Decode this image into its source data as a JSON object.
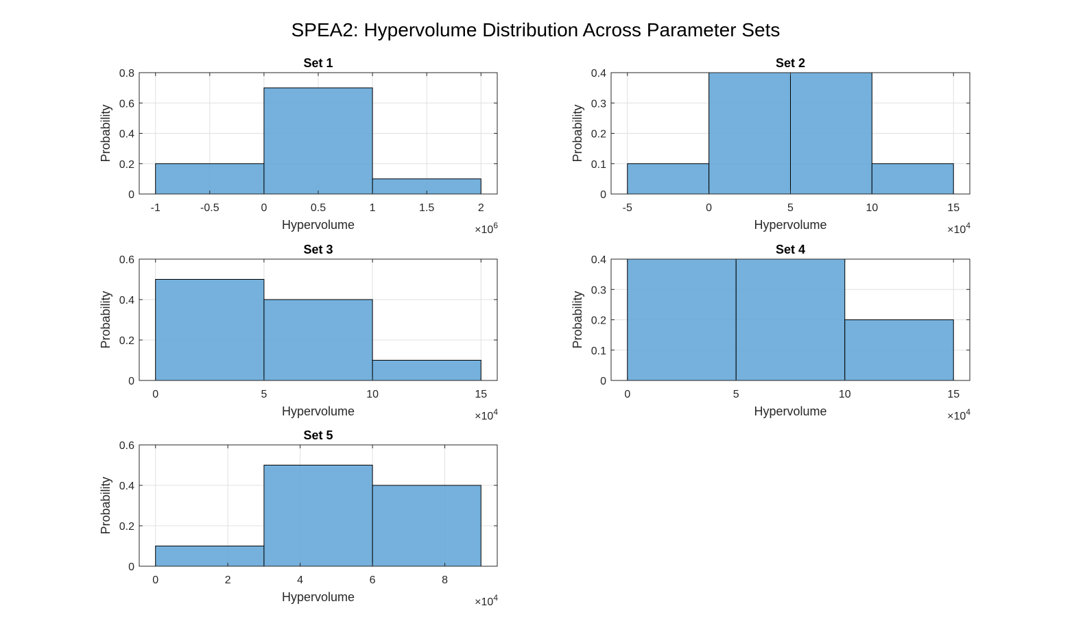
{
  "figure": {
    "title": "SPEA2: Hypervolume Distribution Across Parameter Sets",
    "bar_color": "#66a8d8",
    "bar_edge_color": "#000000",
    "grid_color": "#e0e0e0"
  },
  "chart_data": [
    {
      "type": "bar",
      "title": "Set 1",
      "xlabel": "Hypervolume",
      "ylabel": "Probability",
      "x_multiplier": "×10",
      "x_exponent": "6",
      "bin_edges": [
        -1,
        0,
        1,
        2
      ],
      "values": [
        0.2,
        0.7,
        0.1
      ],
      "xlim": [
        -1.15,
        2.15
      ],
      "ylim": [
        0,
        0.8
      ],
      "xticks": [
        -1,
        -0.5,
        0,
        0.5,
        1,
        1.5,
        2
      ],
      "xtick_labels": [
        "-1",
        "-0.5",
        "0",
        "0.5",
        "1",
        "1.5",
        "2"
      ],
      "yticks": [
        0,
        0.2,
        0.4,
        0.6,
        0.8
      ],
      "ytick_labels": [
        "0",
        "0.2",
        "0.4",
        "0.6",
        "0.8"
      ],
      "grid": true
    },
    {
      "type": "bar",
      "title": "Set 2",
      "xlabel": "Hypervolume",
      "ylabel": "Probability",
      "x_multiplier": "×10",
      "x_exponent": "4",
      "bin_edges": [
        -5,
        0,
        5,
        10,
        15
      ],
      "values": [
        0.1,
        0.4,
        0.4,
        0.1
      ],
      "xlim": [
        -6,
        16
      ],
      "ylim": [
        0,
        0.4
      ],
      "xticks": [
        -5,
        0,
        5,
        10,
        15
      ],
      "xtick_labels": [
        "-5",
        "0",
        "5",
        "10",
        "15"
      ],
      "yticks": [
        0,
        0.1,
        0.2,
        0.3,
        0.4
      ],
      "ytick_labels": [
        "0",
        "0.1",
        "0.2",
        "0.3",
        "0.4"
      ],
      "grid": true
    },
    {
      "type": "bar",
      "title": "Set 3",
      "xlabel": "Hypervolume",
      "ylabel": "Probability",
      "x_multiplier": "×10",
      "x_exponent": "4",
      "bin_edges": [
        0,
        5,
        10,
        15
      ],
      "values": [
        0.5,
        0.4,
        0.1
      ],
      "xlim": [
        -0.75,
        15.75
      ],
      "ylim": [
        0,
        0.6
      ],
      "xticks": [
        0,
        5,
        10,
        15
      ],
      "xtick_labels": [
        "0",
        "5",
        "10",
        "15"
      ],
      "yticks": [
        0,
        0.2,
        0.4,
        0.6
      ],
      "ytick_labels": [
        "0",
        "0.2",
        "0.4",
        "0.6"
      ],
      "grid": true
    },
    {
      "type": "bar",
      "title": "Set 4",
      "xlabel": "Hypervolume",
      "ylabel": "Probability",
      "x_multiplier": "×10",
      "x_exponent": "4",
      "bin_edges": [
        0,
        5,
        10,
        15
      ],
      "values": [
        0.4,
        0.4,
        0.2
      ],
      "xlim": [
        -0.75,
        15.75
      ],
      "ylim": [
        0,
        0.4
      ],
      "xticks": [
        0,
        5,
        10,
        15
      ],
      "xtick_labels": [
        "0",
        "5",
        "10",
        "15"
      ],
      "yticks": [
        0,
        0.1,
        0.2,
        0.3,
        0.4
      ],
      "ytick_labels": [
        "0",
        "0.1",
        "0.2",
        "0.3",
        "0.4"
      ],
      "grid": true
    },
    {
      "type": "bar",
      "title": "Set 5",
      "xlabel": "Hypervolume",
      "ylabel": "Probability",
      "x_multiplier": "×10",
      "x_exponent": "4",
      "bin_edges": [
        0,
        3,
        6,
        9
      ],
      "values": [
        0.1,
        0.5,
        0.4
      ],
      "xlim": [
        -0.45,
        9.45
      ],
      "ylim": [
        0,
        0.6
      ],
      "xticks": [
        0,
        2,
        4,
        6,
        8
      ],
      "xtick_labels": [
        "0",
        "2",
        "4",
        "6",
        "8"
      ],
      "yticks": [
        0,
        0.2,
        0.4,
        0.6
      ],
      "ytick_labels": [
        "0",
        "0.2",
        "0.4",
        "0.6"
      ],
      "grid": true
    }
  ]
}
